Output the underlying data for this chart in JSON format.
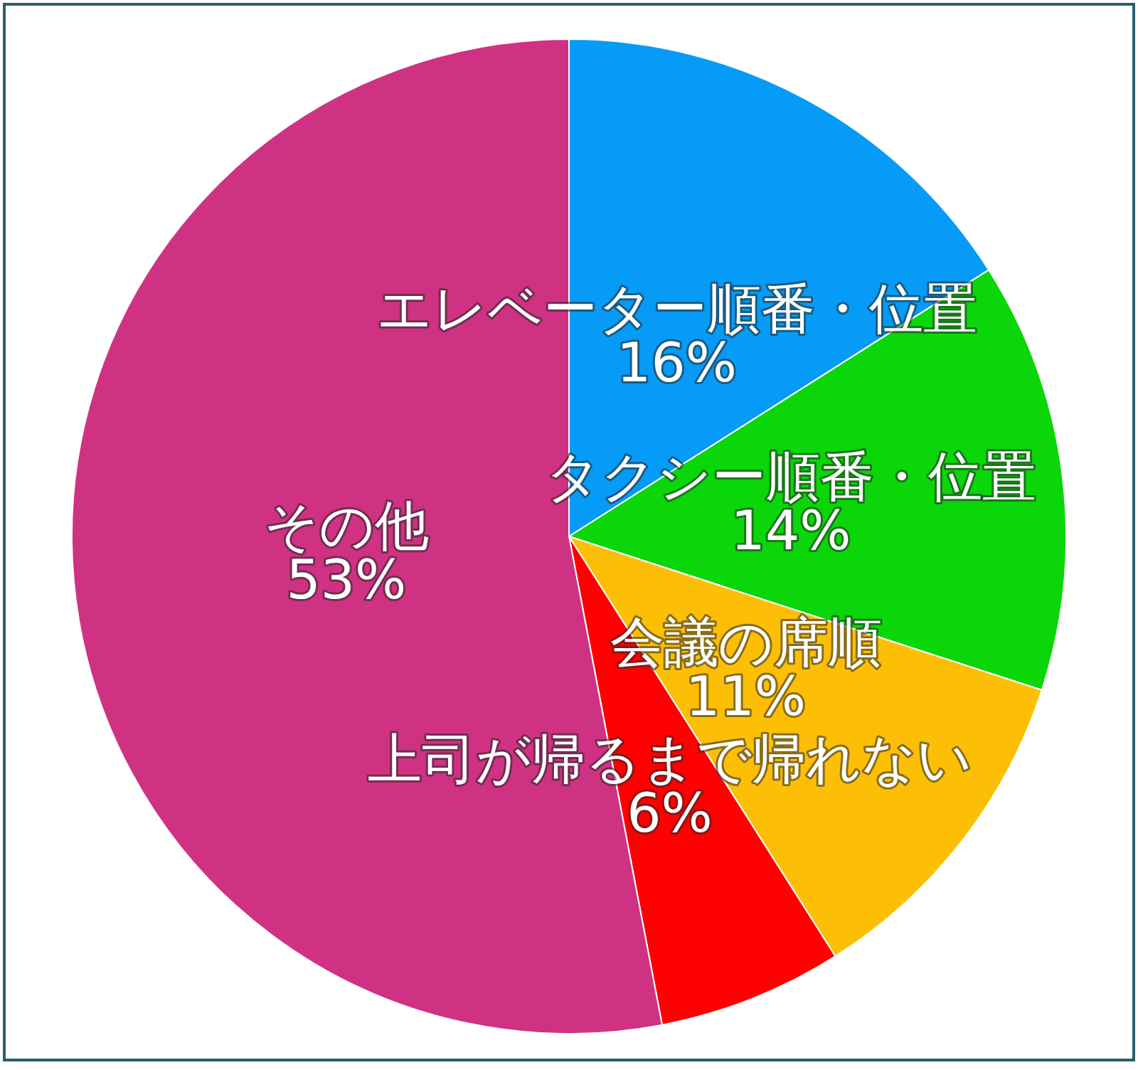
{
  "chart_data": {
    "type": "pie",
    "categories": [
      "エレベーター順番・位置",
      "タクシー順番・位置",
      "会議の席順",
      "上司が帰るまで帰れない",
      "その他"
    ],
    "values": [
      16,
      14,
      11,
      6,
      53
    ],
    "colors": [
      "#069bf6",
      "#0ad60a",
      "#fdbf06",
      "#fe0000",
      "#cf3283"
    ],
    "value_labels": [
      "16%",
      "14%",
      "11%",
      "6%",
      "53%"
    ]
  }
}
